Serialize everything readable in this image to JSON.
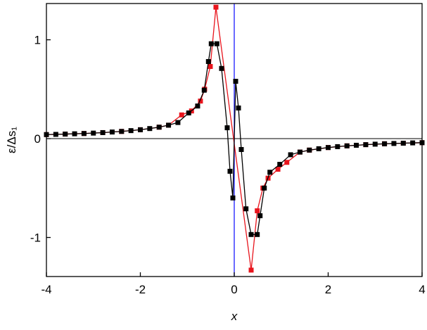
{
  "chart_data": {
    "type": "line",
    "x_label": "x",
    "y_label": "ε/Δs₁",
    "xlim": [
      -4,
      4
    ],
    "ylim": [
      -1.395,
      1.367
    ],
    "xticks": [
      -4,
      -2,
      0,
      2,
      4
    ],
    "yticks": [
      -1,
      0,
      1
    ],
    "series": [
      {
        "color": "#e8141c",
        "x": [
          -4,
          -3.6,
          -3.2,
          -2.8,
          -2.4,
          -2.0,
          -1.6,
          -1.4,
          -1.12,
          -0.91,
          -0.72,
          -0.63,
          -0.51,
          -0.39,
          0.36,
          0.49,
          0.61,
          0.72,
          0.93,
          1.12,
          1.4,
          1.6,
          2.0,
          2.4,
          2.8,
          3.2,
          3.6,
          4
        ],
        "values": [
          0.041,
          0.046,
          0.052,
          0.061,
          0.073,
          0.09,
          0.116,
          0.136,
          0.24,
          0.28,
          0.38,
          0.5,
          0.73,
          1.33,
          -1.33,
          -0.73,
          -0.5,
          -0.4,
          -0.31,
          -0.24,
          -0.136,
          -0.116,
          -0.09,
          -0.073,
          -0.061,
          -0.052,
          -0.046,
          -0.041
        ]
      },
      {
        "color": "#000000",
        "x": [
          -4,
          -3.8,
          -3.6,
          -3.4,
          -3.2,
          -3.0,
          -2.8,
          -2.6,
          -2.4,
          -2.2,
          -2.0,
          -1.8,
          -1.6,
          -1.4,
          -1.2,
          -0.97,
          -0.78,
          -0.64,
          -0.55,
          -0.49,
          -0.37,
          -0.27,
          -0.15,
          -0.09,
          -0.03,
          0.03,
          0.09,
          0.15,
          0.25,
          0.36,
          0.49,
          0.55,
          0.64,
          0.76,
          0.97,
          1.2,
          1.4,
          1.6,
          1.8,
          2.0,
          2.2,
          2.4,
          2.6,
          2.8,
          3.0,
          3.2,
          3.4,
          3.6,
          3.8,
          4
        ],
        "values": [
          0.041,
          0.043,
          0.046,
          0.049,
          0.052,
          0.056,
          0.061,
          0.067,
          0.073,
          0.081,
          0.09,
          0.102,
          0.116,
          0.136,
          0.163,
          0.26,
          0.33,
          0.49,
          0.78,
          0.96,
          0.96,
          0.71,
          0.11,
          -0.33,
          -0.6,
          0.58,
          0.31,
          -0.11,
          -0.71,
          -0.97,
          -0.97,
          -0.78,
          -0.5,
          -0.34,
          -0.26,
          -0.163,
          -0.136,
          -0.116,
          -0.102,
          -0.09,
          -0.081,
          -0.073,
          -0.067,
          -0.061,
          -0.056,
          -0.052,
          -0.049,
          -0.046,
          -0.043,
          -0.041
        ]
      }
    ]
  }
}
